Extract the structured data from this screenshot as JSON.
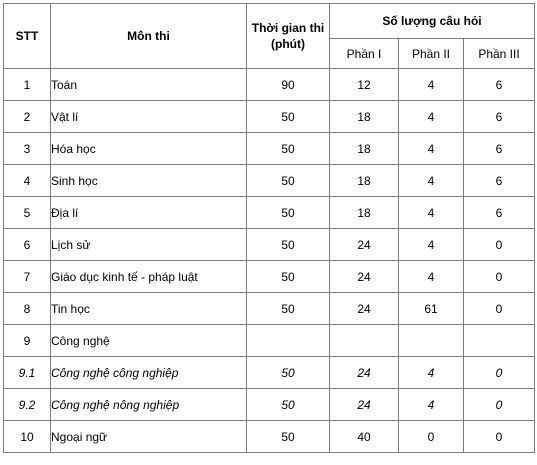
{
  "headers": {
    "stt": "STT",
    "subject": "Môn thi",
    "time_line1": "Thời gian thi",
    "time_line2": "(phút)",
    "questions": "Số lượng câu hỏi",
    "part1": "Phần I",
    "part2": "Phần II",
    "part3": "Phần III"
  },
  "rows": [
    {
      "stt": "1",
      "subject": "Toán",
      "time": "90",
      "p1": "12",
      "p2": "4",
      "p3": "6",
      "italic": false
    },
    {
      "stt": "2",
      "subject": "Vật lí",
      "time": "50",
      "p1": "18",
      "p2": "4",
      "p3": "6",
      "italic": false
    },
    {
      "stt": "3",
      "subject": "Hóa học",
      "time": "50",
      "p1": "18",
      "p2": "4",
      "p3": "6",
      "italic": false
    },
    {
      "stt": "4",
      "subject": "Sinh học",
      "time": "50",
      "p1": "18",
      "p2": "4",
      "p3": "6",
      "italic": false
    },
    {
      "stt": "5",
      "subject": "Địa lí",
      "time": "50",
      "p1": "18",
      "p2": "4",
      "p3": "6",
      "italic": false
    },
    {
      "stt": "6",
      "subject": "Lịch sử",
      "time": "50",
      "p1": "24",
      "p2": "4",
      "p3": "0",
      "italic": false
    },
    {
      "stt": "7",
      "subject": "Giáo dục kinh tế - pháp luật",
      "time": "50",
      "p1": "24",
      "p2": "4",
      "p3": "0",
      "italic": false
    },
    {
      "stt": "8",
      "subject": "Tin học",
      "time": "50",
      "p1": "24",
      "p2": "61",
      "p3": "0",
      "italic": false
    },
    {
      "stt": "9",
      "subject": "Công nghệ",
      "time": "",
      "p1": "",
      "p2": "",
      "p3": "",
      "italic": false
    },
    {
      "stt": "9.1",
      "subject": "Công nghệ công nghiệp",
      "time": "50",
      "p1": "24",
      "p2": "4",
      "p3": "0",
      "italic": true
    },
    {
      "stt": "9.2",
      "subject": "Công nghệ nông nghiệp",
      "time": "50",
      "p1": "24",
      "p2": "4",
      "p3": "0",
      "italic": true
    },
    {
      "stt": "10",
      "subject": "Ngoại ngữ",
      "time": "50",
      "p1": "40",
      "p2": "0",
      "p3": "0",
      "italic": false
    }
  ]
}
